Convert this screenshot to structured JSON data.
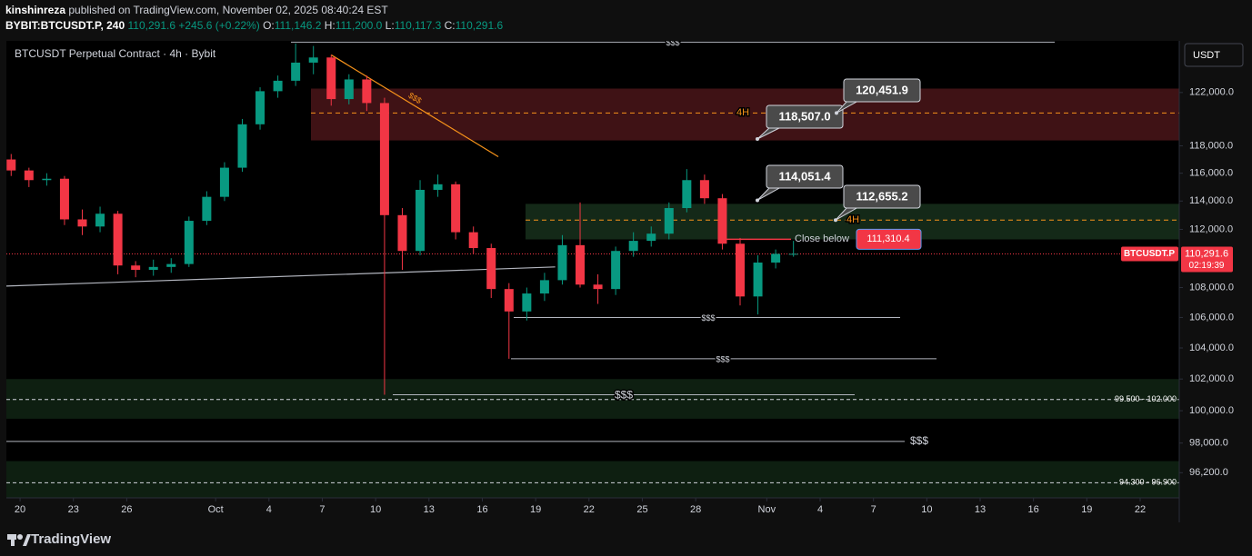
{
  "header": {
    "author": "kinshinreza",
    "published": "published on TradingView.com, November 02, 2025 08:40:24 EST",
    "symbol": "BYBIT:BTCUSDT.P, 240",
    "last": "110,291.6",
    "change": "+245.6 (+0.22%)",
    "o_label": "O:",
    "open": "111,146.2",
    "h_label": "H:",
    "high": "111,200.0",
    "l_label": "L:",
    "low": "110,117.3",
    "c_label": "C:",
    "close": "110,291.6"
  },
  "chart_data": {
    "type": "candlestick",
    "title": "BTCUSDT Perpetual Contract · 4h · Bybit",
    "currency": "USDT",
    "up_color": "#089981",
    "down_color": "#f23645",
    "log_scale": true,
    "x": [
      -0.5,
      0.5,
      1.5,
      2.5,
      3.5,
      4.5,
      5.5,
      6.5,
      7.5,
      8.5,
      9.5,
      10.5,
      11.5,
      12.5,
      13.5,
      14.5,
      15.5,
      16.5,
      17.5,
      18.5,
      19.5,
      20.5,
      21.5,
      22.5,
      23.5,
      24.5,
      25.5,
      26.5,
      27.5,
      28.5,
      29.5,
      30.5,
      31.5,
      32.5,
      33.5,
      34.5,
      35.5,
      36.5,
      37.5,
      38.5,
      39.5,
      40.5,
      41.5,
      42.5,
      43.5
    ],
    "open": [
      117000,
      116200,
      115500,
      115600,
      112700,
      112200,
      113100,
      109500,
      109200,
      109400,
      109600,
      112600,
      114300,
      116400,
      119600,
      122100,
      122900,
      124300,
      124700,
      121500,
      123000,
      121200,
      113000,
      110500,
      114800,
      115200,
      111800,
      110700,
      107900,
      106400,
      107600,
      108500,
      110900,
      108200,
      107900,
      110500,
      111200,
      111700,
      113500,
      115500,
      114200,
      111000,
      107400,
      109700,
      110300
    ],
    "high": [
      117400,
      116400,
      116000,
      115800,
      113400,
      113600,
      113300,
      109800,
      109900,
      110000,
      112900,
      114700,
      116800,
      120000,
      122400,
      123300,
      125800,
      125600,
      124900,
      123400,
      123300,
      121600,
      113500,
      115500,
      115900,
      115400,
      112200,
      111000,
      108300,
      108000,
      109000,
      111600,
      113900,
      108900,
      110800,
      111800,
      112200,
      113900,
      116300,
      115900,
      114500,
      111400,
      110200,
      110600,
      111200
    ],
    "low": [
      115800,
      115000,
      115100,
      112300,
      111600,
      111800,
      108900,
      108700,
      108800,
      109000,
      109400,
      112300,
      114000,
      116100,
      119200,
      121600,
      122500,
      123400,
      121000,
      121100,
      120600,
      101000,
      109200,
      110200,
      114300,
      111300,
      110300,
      107300,
      103300,
      105800,
      107100,
      108200,
      108000,
      106900,
      107500,
      110100,
      110800,
      111300,
      113200,
      113800,
      110600,
      106800,
      106200,
      109300,
      110100
    ],
    "close": [
      116200,
      115500,
      115600,
      112700,
      112200,
      113100,
      109500,
      109200,
      109400,
      109600,
      112600,
      114300,
      116400,
      119600,
      122100,
      122900,
      124300,
      124700,
      121500,
      123000,
      121200,
      113000,
      110500,
      114800,
      115200,
      111800,
      110700,
      107900,
      106400,
      107600,
      108500,
      110900,
      108200,
      107900,
      110500,
      111200,
      111700,
      113500,
      115500,
      114200,
      111000,
      107400,
      109700,
      110300,
      110300
    ],
    "xlim": [
      -0.77,
      65.2
    ],
    "xticks": [
      {
        "value": 0,
        "label": "20"
      },
      {
        "value": 3,
        "label": "23"
      },
      {
        "value": 6,
        "label": "26"
      },
      {
        "value": 11,
        "label": "Oct"
      },
      {
        "value": 14,
        "label": "4"
      },
      {
        "value": 17,
        "label": "7"
      },
      {
        "value": 20,
        "label": "10"
      },
      {
        "value": 23,
        "label": "13"
      },
      {
        "value": 26,
        "label": "16"
      },
      {
        "value": 29,
        "label": "19"
      },
      {
        "value": 32,
        "label": "22"
      },
      {
        "value": 35,
        "label": "25"
      },
      {
        "value": 38,
        "label": "28"
      },
      {
        "value": 42,
        "label": "Nov"
      },
      {
        "value": 45,
        "label": "4"
      },
      {
        "value": 48,
        "label": "7"
      },
      {
        "value": 51,
        "label": "10"
      },
      {
        "value": 54,
        "label": "13"
      },
      {
        "value": 57,
        "label": "16"
      },
      {
        "value": 60,
        "label": "19"
      },
      {
        "value": 63,
        "label": "22"
      }
    ],
    "ylim": [
      94700,
      126000
    ],
    "yticks": [
      {
        "value": 122000,
        "label": "122,000.0"
      },
      {
        "value": 118000,
        "label": "118,000.0"
      },
      {
        "value": 116000,
        "label": "116,000.0"
      },
      {
        "value": 114000,
        "label": "114,000.0"
      },
      {
        "value": 112000,
        "label": "112,000.0"
      },
      {
        "value": 108000,
        "label": "108,000.0"
      },
      {
        "value": 106000,
        "label": "106,000.0"
      },
      {
        "value": 104000,
        "label": "104,000.0"
      },
      {
        "value": 102000,
        "label": "102,000.0"
      },
      {
        "value": 100000,
        "label": "100,000.0"
      },
      {
        "value": 98000,
        "label": "98,000.0"
      },
      {
        "value": 96200,
        "label": "96,200.0"
      }
    ],
    "zones": [
      {
        "low": 118400,
        "high": 122300,
        "color": "#4a1519"
      },
      {
        "low": 111300,
        "high": 113800,
        "color": "#17301c"
      },
      {
        "low": 99500,
        "high": 102000,
        "color": "#112414",
        "mid": 100700,
        "label": "99.500 - 102.000"
      },
      {
        "low": 94300,
        "high": 96900,
        "color": "#112414",
        "mid": 95600,
        "label": "94.300 - 96.900"
      }
    ],
    "levels": [
      {
        "value": 120451.9,
        "label": "4H"
      },
      {
        "value": 112655.2,
        "label": "4H"
      }
    ],
    "liquidity": [
      {
        "value": 125900,
        "label": "$$$"
      },
      {
        "value": 106000,
        "label": "$$$"
      },
      {
        "value": 103300,
        "label": "$$$"
      },
      {
        "value": 101000,
        "label": "$$$"
      },
      {
        "value": 98100,
        "label": "$$$"
      }
    ],
    "trendlines": [
      {
        "x": [
          17.5,
          26.9
        ],
        "y": [
          124900,
          117200
        ],
        "color": "#f7931a",
        "label": "$$$"
      },
      {
        "x": [
          -0.77,
          30.1
        ],
        "y": [
          108100,
          109400
        ],
        "color": "#b2b5be"
      }
    ],
    "callouts": [
      {
        "value": 118507,
        "label": "118,507.0"
      },
      {
        "value": 120451.9,
        "label": "120,451.9"
      },
      {
        "value": 114051.4,
        "label": "114,051.4"
      },
      {
        "value": 112655.2,
        "label": "112,655.2"
      }
    ],
    "close_below": {
      "text": "Close below",
      "value": 111310.4,
      "label": "111,310.4"
    },
    "price_tag": {
      "symbol": "BTCUSDT.P",
      "value": 110291.6,
      "label": "110,291.6",
      "countdown": "02:19:39"
    }
  },
  "footer": {
    "brand": "TradingView"
  }
}
